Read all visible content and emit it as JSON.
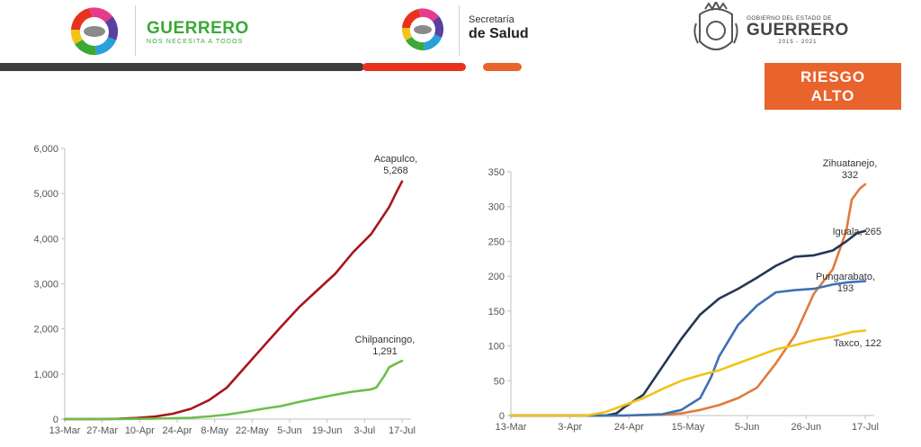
{
  "header": {
    "brand_name": "GUERRERO",
    "brand_tagline": "NOS NECESITA A TODOS",
    "secretaria_line1": "Secretaría",
    "secretaria_line2": "de Salud",
    "gobierno_line1": "GOBIERNO DEL ESTADO DE",
    "gobierno_line2": "GUERRERO",
    "gobierno_years": "2015 - 2021"
  },
  "risk_badge": {
    "line1": "RIESGO",
    "line2": "ALTO",
    "color": "#e8642c"
  },
  "colors": {
    "dark_bar": "#3d3d3d",
    "red_bar": "#e8321e",
    "orange_bar": "#e8642c"
  },
  "chart_data": [
    {
      "type": "line",
      "title": "",
      "xlabel": "",
      "ylabel": "",
      "x_tick_labels": [
        "13-Mar",
        "27-Mar",
        "10-Apr",
        "24-Apr",
        "8-May",
        "22-May",
        "5-Jun",
        "19-Jun",
        "3-Jul",
        "17-Jul"
      ],
      "ylim": [
        0,
        6000
      ],
      "y_ticks": [
        0,
        1000,
        2000,
        3000,
        4000,
        5000,
        6000
      ],
      "y_tick_labels": [
        "0",
        "1,000",
        "2,000",
        "3,000",
        "4,000",
        "5,000",
        "6,000"
      ],
      "x_range_days": [
        0,
        131
      ],
      "series": [
        {
          "name": "Acapulco",
          "color": "#a8161c",
          "label_lines": [
            "Acapulco,",
            "5,268"
          ],
          "points": [
            [
              0,
              0
            ],
            [
              14,
              2
            ],
            [
              21,
              8
            ],
            [
              28,
              25
            ],
            [
              35,
              55
            ],
            [
              42,
              120
            ],
            [
              49,
              230
            ],
            [
              56,
              420
            ],
            [
              63,
              700
            ],
            [
              70,
              1150
            ],
            [
              77,
              1600
            ],
            [
              84,
              2050
            ],
            [
              91,
              2480
            ],
            [
              98,
              2850
            ],
            [
              105,
              3220
            ],
            [
              112,
              3700
            ],
            [
              119,
              4100
            ],
            [
              126,
              4700
            ],
            [
              129,
              5050
            ],
            [
              131,
              5268
            ]
          ]
        },
        {
          "name": "Chilpancingo",
          "color": "#6cbf4a",
          "label_lines": [
            "Chilpancingo,",
            "1,291"
          ],
          "points": [
            [
              0,
              0
            ],
            [
              21,
              2
            ],
            [
              35,
              10
            ],
            [
              49,
              30
            ],
            [
              56,
              60
            ],
            [
              63,
              100
            ],
            [
              70,
              160
            ],
            [
              77,
              230
            ],
            [
              84,
              290
            ],
            [
              91,
              380
            ],
            [
              98,
              460
            ],
            [
              105,
              540
            ],
            [
              112,
              610
            ],
            [
              119,
              660
            ],
            [
              121,
              700
            ],
            [
              124,
              950
            ],
            [
              126,
              1150
            ],
            [
              129,
              1240
            ],
            [
              131,
              1291
            ]
          ]
        }
      ]
    },
    {
      "type": "line",
      "title": "",
      "xlabel": "",
      "ylabel": "",
      "x_tick_labels": [
        "13-Mar",
        "3-Apr",
        "24-Apr",
        "15-May",
        "5-Jun",
        "26-Jun",
        "17-Jul"
      ],
      "ylim": [
        0,
        350
      ],
      "y_ticks": [
        0,
        50,
        100,
        150,
        200,
        250,
        300,
        350
      ],
      "y_tick_labels": [
        "0",
        "50",
        "100",
        "150",
        "200",
        "250",
        "300",
        "350"
      ],
      "x_range_days": [
        0,
        131
      ],
      "series": [
        {
          "name": "Zihuatanejo",
          "color": "#e07a3c",
          "label_lines": [
            "Zihuatanejo,",
            "332"
          ],
          "points": [
            [
              0,
              0
            ],
            [
              42,
              0
            ],
            [
              56,
              1
            ],
            [
              63,
              3
            ],
            [
              70,
              8
            ],
            [
              77,
              15
            ],
            [
              84,
              25
            ],
            [
              91,
              40
            ],
            [
              98,
              75
            ],
            [
              105,
              115
            ],
            [
              112,
              175
            ],
            [
              119,
              210
            ],
            [
              124,
              265
            ],
            [
              126,
              310
            ],
            [
              129,
              326
            ],
            [
              131,
              332
            ]
          ]
        },
        {
          "name": "Iguala",
          "color": "#243653",
          "label_lines": [
            "Iguala, 265"
          ],
          "points": [
            [
              0,
              0
            ],
            [
              35,
              0
            ],
            [
              39,
              3
            ],
            [
              42,
              12
            ],
            [
              49,
              30
            ],
            [
              56,
              70
            ],
            [
              63,
              110
            ],
            [
              70,
              145
            ],
            [
              77,
              168
            ],
            [
              84,
              182
            ],
            [
              91,
              198
            ],
            [
              98,
              215
            ],
            [
              105,
              228
            ],
            [
              112,
              230
            ],
            [
              119,
              237
            ],
            [
              124,
              250
            ],
            [
              128,
              262
            ],
            [
              131,
              265
            ]
          ]
        },
        {
          "name": "Pungarabato",
          "color": "#3d70b8",
          "label_lines": [
            "Pungarabato,",
            "193"
          ],
          "points": [
            [
              0,
              0
            ],
            [
              42,
              0
            ],
            [
              56,
              2
            ],
            [
              63,
              8
            ],
            [
              70,
              25
            ],
            [
              74,
              55
            ],
            [
              77,
              85
            ],
            [
              84,
              130
            ],
            [
              91,
              158
            ],
            [
              98,
              177
            ],
            [
              105,
              180
            ],
            [
              112,
              182
            ],
            [
              119,
              188
            ],
            [
              124,
              191
            ],
            [
              131,
              193
            ]
          ]
        },
        {
          "name": "Taxco",
          "color": "#f2c318",
          "label_lines": [
            "Taxco, 122"
          ],
          "points": [
            [
              0,
              0
            ],
            [
              28,
              0
            ],
            [
              35,
              5
            ],
            [
              42,
              15
            ],
            [
              49,
              25
            ],
            [
              56,
              38
            ],
            [
              63,
              50
            ],
            [
              70,
              58
            ],
            [
              77,
              65
            ],
            [
              84,
              75
            ],
            [
              91,
              85
            ],
            [
              98,
              95
            ],
            [
              105,
              101
            ],
            [
              112,
              108
            ],
            [
              119,
              113
            ],
            [
              126,
              120
            ],
            [
              131,
              122
            ]
          ]
        }
      ]
    }
  ]
}
